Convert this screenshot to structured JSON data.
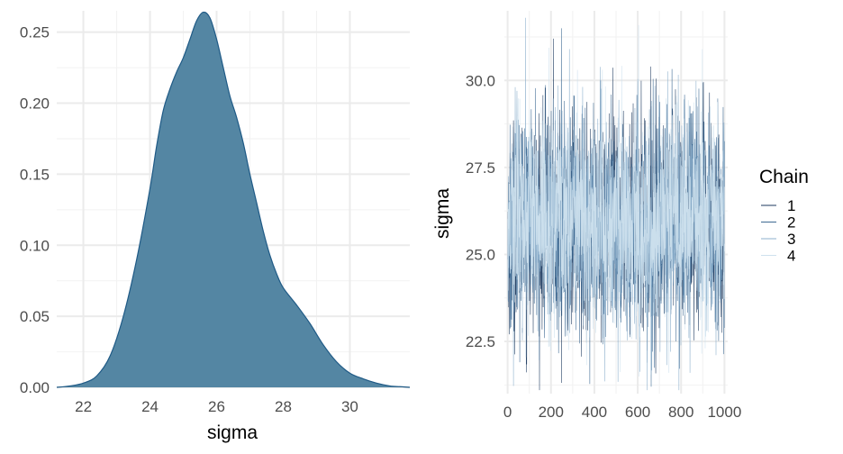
{
  "chart_data": [
    {
      "type": "area",
      "subtype": "density",
      "title": "",
      "xlabel": "sigma",
      "ylabel": "",
      "xlim": [
        21.2,
        31.8
      ],
      "ylim": [
        0,
        0.265
      ],
      "xticks": [
        22,
        24,
        26,
        28,
        30
      ],
      "xtick_labels": [
        "22",
        "24",
        "26",
        "28",
        "30"
      ],
      "yticks": [
        0.0,
        0.05,
        0.1,
        0.15,
        0.2,
        0.25
      ],
      "ytick_labels": [
        "0.00",
        "0.05",
        "0.10",
        "0.15",
        "0.20",
        "0.25"
      ],
      "grid": true,
      "fill_color": "#5486a3",
      "line_color": "#1f5a86",
      "x": [
        21.2,
        21.6,
        22.0,
        22.4,
        22.8,
        23.2,
        23.6,
        24.0,
        24.2,
        24.4,
        24.6,
        24.8,
        25.0,
        25.2,
        25.4,
        25.6,
        25.8,
        26.0,
        26.2,
        26.4,
        26.6,
        26.8,
        27.0,
        27.2,
        27.4,
        27.6,
        27.8,
        28.0,
        28.4,
        28.8,
        29.2,
        29.6,
        30.0,
        30.4,
        30.8,
        31.2,
        31.5,
        31.8
      ],
      "y": [
        0.0,
        0.001,
        0.003,
        0.008,
        0.022,
        0.05,
        0.09,
        0.14,
        0.17,
        0.195,
        0.21,
        0.222,
        0.232,
        0.245,
        0.258,
        0.264,
        0.26,
        0.245,
        0.225,
        0.205,
        0.19,
        0.172,
        0.15,
        0.13,
        0.11,
        0.093,
        0.08,
        0.07,
        0.058,
        0.045,
        0.03,
        0.018,
        0.01,
        0.006,
        0.003,
        0.001,
        0.0005,
        0.0
      ]
    },
    {
      "type": "line",
      "subtype": "trace",
      "title": "",
      "xlabel": "",
      "ylabel": "sigma",
      "xlim": [
        -15,
        1015
      ],
      "ylim": [
        21.0,
        32.0
      ],
      "xticks": [
        0,
        200,
        400,
        600,
        800,
        1000
      ],
      "xtick_labels": [
        "0",
        "200",
        "400",
        "600",
        "800",
        "1000"
      ],
      "yticks": [
        22.5,
        25.0,
        27.5,
        30.0
      ],
      "ytick_labels": [
        "22.5",
        "25.0",
        "27.5",
        "30.0"
      ],
      "grid": true,
      "legend": {
        "title": "Chain",
        "position": "right",
        "entries": [
          "1",
          "2",
          "3",
          "4"
        ]
      },
      "series": [
        {
          "name": "1",
          "color": "#1d3a5f",
          "mean": 25.9,
          "sd": 1.5,
          "n": 1000,
          "observed_max": 31.2,
          "observed_min": 22.9
        },
        {
          "name": "2",
          "color": "#3e6a93",
          "mean": 25.9,
          "sd": 1.5,
          "n": 1000,
          "observed_max": 31.5,
          "observed_min": 21.2
        },
        {
          "name": "3",
          "color": "#8db0cc",
          "mean": 25.9,
          "sd": 1.5,
          "n": 1000,
          "observed_max": 30.9,
          "observed_min": 22.2
        },
        {
          "name": "4",
          "color": "#cfe1ee",
          "mean": 25.9,
          "sd": 1.5,
          "n": 1000,
          "observed_max": 30.3,
          "observed_min": 21.6
        }
      ]
    }
  ]
}
